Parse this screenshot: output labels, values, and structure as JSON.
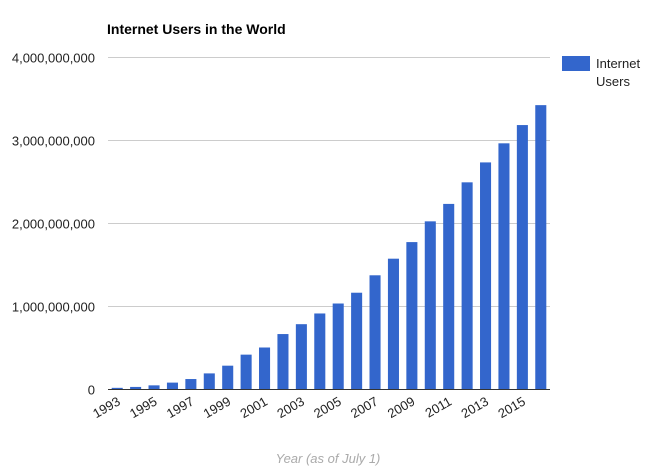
{
  "chart_data": {
    "type": "bar",
    "title": "Internet Users in the World",
    "xlabel": "Year (as of July 1)",
    "ylabel": "",
    "ylim": [
      0,
      4000000000
    ],
    "y_ticks": [
      0,
      1000000000,
      2000000000,
      3000000000,
      4000000000
    ],
    "y_tick_labels": [
      "0",
      "1,000,000,000",
      "2,000,000,000",
      "3,000,000,000",
      "4,000,000,000"
    ],
    "categories": [
      "1993",
      "1994",
      "1995",
      "1996",
      "1997",
      "1998",
      "1999",
      "2000",
      "2001",
      "2002",
      "2003",
      "2004",
      "2005",
      "2006",
      "2007",
      "2008",
      "2009",
      "2010",
      "2011",
      "2012",
      "2013",
      "2014",
      "2015",
      "2016"
    ],
    "x_tick_labels": [
      "1993",
      "1995",
      "1997",
      "1999",
      "2001",
      "2003",
      "2005",
      "2007",
      "2009",
      "2011",
      "2013",
      "2015"
    ],
    "series": [
      {
        "name": "Internet Users",
        "color": "#3366cc",
        "values": [
          14000000,
          25000000,
          44000000,
          77000000,
          120000000,
          188000000,
          281000000,
          414000000,
          500000000,
          662000000,
          781000000,
          910000000,
          1030000000,
          1160000000,
          1370000000,
          1570000000,
          1770000000,
          2020000000,
          2230000000,
          2490000000,
          2730000000,
          2960000000,
          3180000000,
          3420000000
        ]
      }
    ],
    "grid": true,
    "legend_position": "right"
  }
}
